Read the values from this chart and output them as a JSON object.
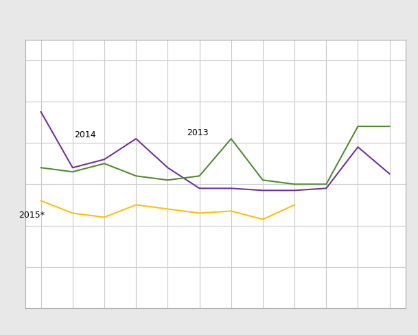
{
  "x": [
    1,
    2,
    3,
    4,
    5,
    6,
    7,
    8,
    9,
    10,
    11,
    12
  ],
  "x_2015": [
    1,
    2,
    3,
    4,
    5,
    6,
    7,
    8,
    9
  ],
  "purple_2014": [
    95,
    68,
    72,
    82,
    68,
    58,
    58,
    57,
    57,
    58,
    78,
    65
  ],
  "green_2013": [
    68,
    66,
    70,
    64,
    62,
    64,
    82,
    62,
    60,
    60,
    88,
    88
  ],
  "gold_2015": [
    52,
    46,
    44,
    50,
    48,
    46,
    47,
    43,
    50
  ],
  "color_purple": "#7030A0",
  "color_green": "#4E8C2A",
  "color_gold": "#FFC000",
  "ann_2014_x": 2.05,
  "ann_2014_y": 83,
  "ann_2013_x": 5.6,
  "ann_2013_y": 84,
  "ann_2015_x": 0.3,
  "ann_2015_y": 44,
  "linewidth": 1.5,
  "ylim": [
    0,
    130
  ],
  "xlim": [
    0.5,
    12.5
  ],
  "figwidth": 6.09,
  "figheight": 4.89,
  "dpi": 100,
  "bg_outer": "#e8e8e8",
  "bg_plot": "#ffffff",
  "grid_color": "#c8c8c8",
  "border_color": "#aaaaaa"
}
